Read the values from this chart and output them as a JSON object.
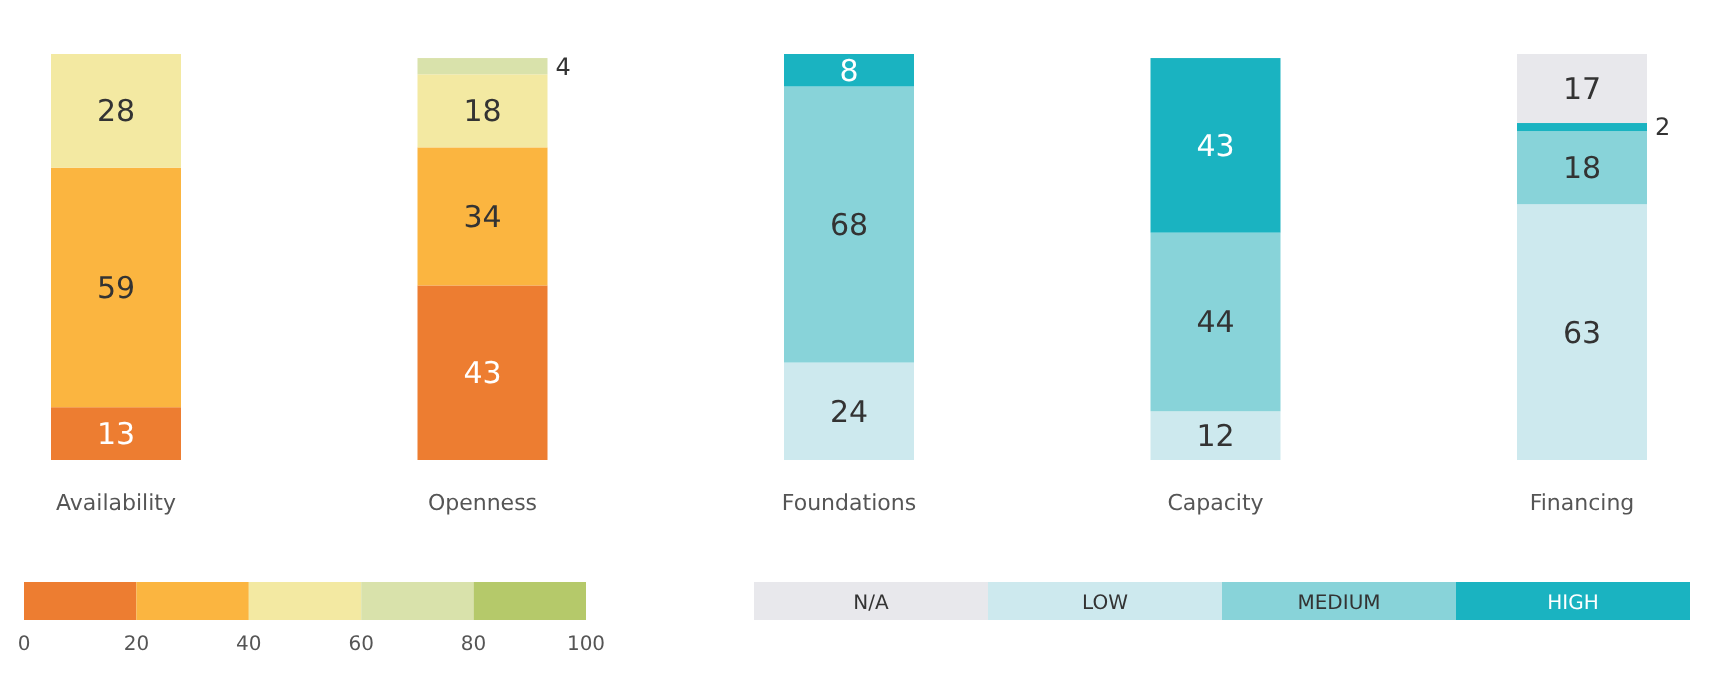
{
  "chart_data": {
    "type": "bar",
    "stacked": true,
    "data_labels": true,
    "legend": "bottom",
    "categories": [
      "Availability",
      "Openness",
      "Foundations",
      "Capacity",
      "Financing"
    ],
    "clim": [
      0,
      100
    ],
    "cticks": [
      0,
      20,
      40,
      60,
      80,
      100
    ],
    "series": [
      {
        "color": "#ed7d31",
        "values": [
          13,
          43,
          null,
          null,
          null
        ]
      },
      {
        "color": "#fbb540",
        "values": [
          59,
          34,
          null,
          null,
          null
        ]
      },
      {
        "color": "#f3e9a2",
        "values": [
          28,
          18,
          null,
          null,
          null
        ]
      },
      {
        "color": "#d9e2ab",
        "values": [
          null,
          4,
          null,
          null,
          null
        ]
      },
      {
        "color": "#b5c96a",
        "values": [
          null,
          null,
          null,
          null,
          null
        ]
      },
      {
        "name": "LOW",
        "color": "#cde9ee",
        "values": [
          null,
          null,
          24,
          12,
          63
        ]
      },
      {
        "name": "MEDIUM",
        "color": "#88d3d9",
        "values": [
          null,
          null,
          68,
          44,
          18
        ]
      },
      {
        "name": "HIGH",
        "color": "#1ab3c1",
        "values": [
          null,
          null,
          8,
          43,
          2
        ]
      },
      {
        "name": "N/A",
        "color": "#e8e8ec",
        "values": [
          null,
          null,
          null,
          null,
          17
        ]
      }
    ]
  }
}
